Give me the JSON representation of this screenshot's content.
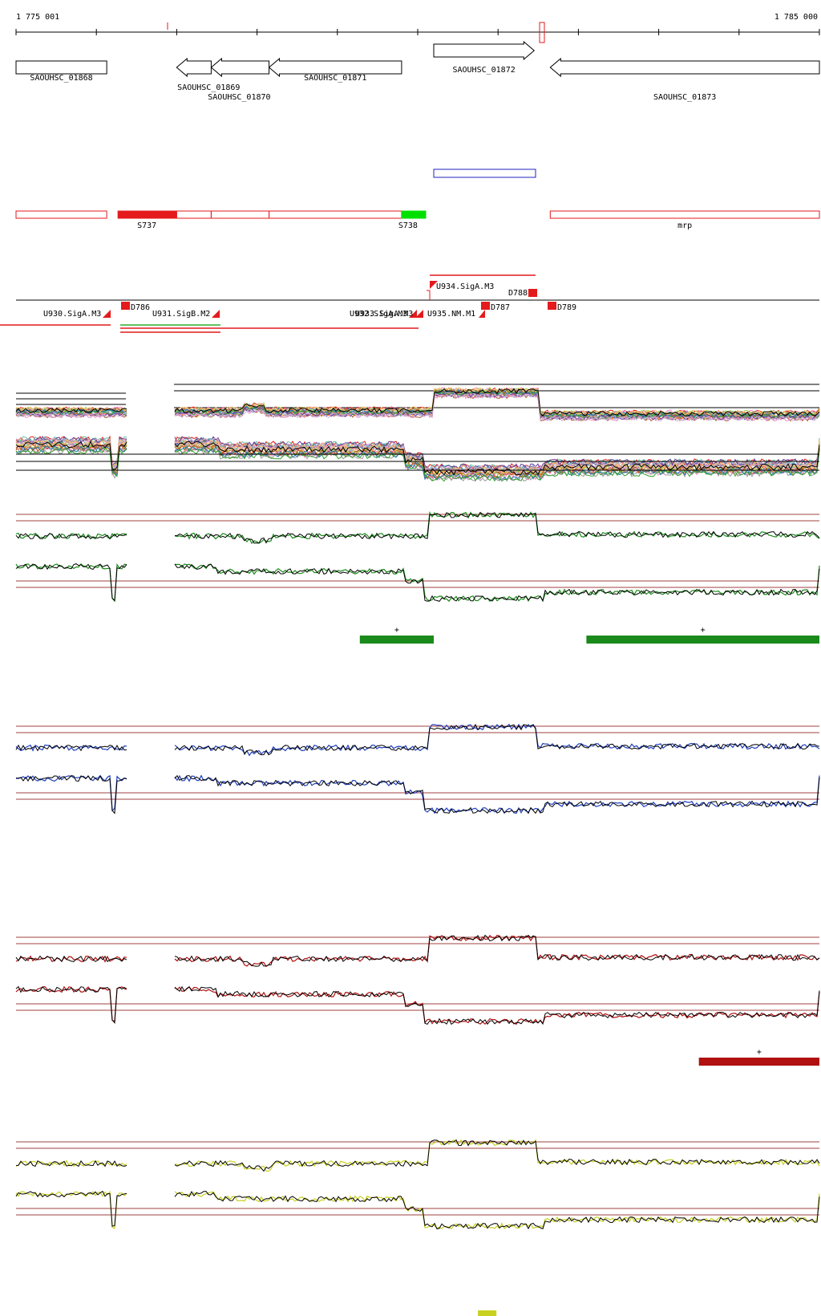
{
  "ruler": {
    "start_label": "1 775 001",
    "end_label": "1 785 000",
    "start": 1775001,
    "end": 1785000
  },
  "colors": {
    "gene_outline": "#000000",
    "segment": "#e41a1c",
    "segment_green": "#00e000",
    "blue_box": "#2020c0",
    "green_track": "#1a8a1a",
    "blue_track": "#1f3fbf",
    "red_track": "#b01010",
    "yellow_track": "#c8d020",
    "threshold": "#a04040"
  },
  "genes": [
    {
      "id": "SAOUHSC_01868",
      "label": "SAOUHSC_01868",
      "start": 1775001,
      "end": 1776130,
      "strand": "none"
    },
    {
      "id": "SAOUHSC_01869",
      "label": "SAOUHSC_01869",
      "start": 1777000,
      "end": 1777430,
      "strand": "-"
    },
    {
      "id": "SAOUHSC_01870",
      "label": "SAOUHSC_01870",
      "start": 1777430,
      "end": 1778150,
      "strand": "-"
    },
    {
      "id": "SAOUHSC_01871",
      "label": "SAOUHSC_01871",
      "start": 1778150,
      "end": 1779800,
      "strand": "-"
    },
    {
      "id": "SAOUHSC_01872",
      "label": "SAOUHSC_01872",
      "start": 1780200,
      "end": 1781450,
      "strand": "+"
    },
    {
      "id": "SAOUHSC_01873",
      "label": "SAOUHSC_01873",
      "start": 1781650,
      "end": 1785000,
      "strand": "-"
    }
  ],
  "segments": [
    {
      "label": "",
      "start": 1775001,
      "end": 1776130,
      "fill": "none"
    },
    {
      "label": "S737",
      "start": 1776270,
      "end": 1777000,
      "fill": "red"
    },
    {
      "label": "",
      "start": 1777000,
      "end": 1777430,
      "fill": "none"
    },
    {
      "label": "",
      "start": 1777430,
      "end": 1778150,
      "fill": "none"
    },
    {
      "label": "S738",
      "start": 1778150,
      "end": 1779800,
      "fill": "none"
    },
    {
      "label": "",
      "start": 1779800,
      "end": 1780100,
      "fill": "green"
    },
    {
      "label": "mrp",
      "start": 1781650,
      "end": 1785000,
      "fill": "none"
    }
  ],
  "features": [
    {
      "label": "U930.SigA.M3"
    },
    {
      "label": "D786"
    },
    {
      "label": "U931.SigB.M2"
    },
    {
      "label": "U932.SigA.M3"
    },
    {
      "label": "U933.SigA.M3"
    },
    {
      "label": "U934.SigA.M3"
    },
    {
      "label": "U935.NM.M1"
    },
    {
      "label": "D787"
    },
    {
      "label": "D788"
    },
    {
      "label": "D789"
    }
  ],
  "track_groups": [
    {
      "id": "multi",
      "color": "multi"
    },
    {
      "id": "green",
      "color": "#1a8a1a",
      "call_marks": [
        {
          "label": "+",
          "start": 1779280,
          "end": 1780200
        },
        {
          "label": "+",
          "start": 1782100,
          "end": 1785000
        }
      ]
    },
    {
      "id": "blue",
      "color": "#1f3fbf",
      "call_marks": []
    },
    {
      "id": "red",
      "color": "#b01010",
      "call_marks": [
        {
          "label": "+",
          "start": 1783500,
          "end": 1785000
        }
      ]
    },
    {
      "id": "yellow",
      "color": "#c8d020",
      "call_marks": [
        {
          "label": "-",
          "start": 1780750,
          "end": 1780980
        }
      ]
    }
  ]
}
